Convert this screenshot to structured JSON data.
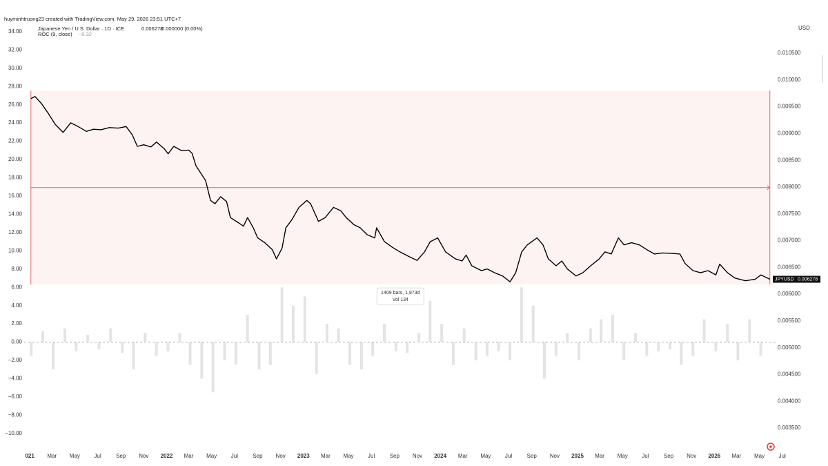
{
  "chart_data": {
    "type": "line",
    "credit": "huyminhtruong23 created with TradingView.com, May 29, 2026 23:51 UTC+7",
    "title": "Japanese Yen / U.S. Dollar · 1D · ICE",
    "last_value": 0.006278,
    "change": "0.000000 (0.00%)",
    "indicator": "ROC (9, close)",
    "indicator_value": "−0.32",
    "currency": "USD",
    "xlim": [
      "2020-12-17",
      "2026-06-15"
    ],
    "xticks": [
      {
        "value": "2021-01-01",
        "label": "021"
      },
      {
        "value": "2021-03-01",
        "label": "Mar"
      },
      {
        "value": "2021-05-01",
        "label": "May"
      },
      {
        "value": "2021-07-01",
        "label": "Jul"
      },
      {
        "value": "2021-09-01",
        "label": "Sep"
      },
      {
        "value": "2021-11-01",
        "label": "Nov"
      },
      {
        "value": "2022-01-01",
        "label": "2022"
      },
      {
        "value": "2022-03-01",
        "label": "Mar"
      },
      {
        "value": "2022-05-01",
        "label": "May"
      },
      {
        "value": "2022-07-01",
        "label": "Jul"
      },
      {
        "value": "2022-09-01",
        "label": "Sep"
      },
      {
        "value": "2022-11-01",
        "label": "Nov"
      },
      {
        "value": "2023-01-01",
        "label": "2023"
      },
      {
        "value": "2023-03-01",
        "label": "Mar"
      },
      {
        "value": "2023-05-01",
        "label": "May"
      },
      {
        "value": "2023-07-01",
        "label": "Jul"
      },
      {
        "value": "2023-09-01",
        "label": "Sep"
      },
      {
        "value": "2023-11-01",
        "label": "Nov"
      },
      {
        "value": "2024-01-01",
        "label": "2024"
      },
      {
        "value": "2024-03-01",
        "label": "Mar"
      },
      {
        "value": "2024-05-01",
        "label": "May"
      },
      {
        "value": "2024-07-01",
        "label": "Jul"
      },
      {
        "value": "2024-09-01",
        "label": "Sep"
      },
      {
        "value": "2024-11-01",
        "label": "Nov"
      },
      {
        "value": "2025-01-01",
        "label": "2025"
      },
      {
        "value": "2025-03-01",
        "label": "Mar"
      },
      {
        "value": "2025-05-01",
        "label": "May"
      },
      {
        "value": "2025-07-01",
        "label": "Jul"
      },
      {
        "value": "2025-09-01",
        "label": "Sep"
      },
      {
        "value": "2025-11-01",
        "label": "Nov"
      },
      {
        "value": "2026-01-01",
        "label": "2026"
      },
      {
        "value": "2026-03-01",
        "label": "Mar"
      },
      {
        "value": "2026-05-01",
        "label": "May"
      },
      {
        "value": "2026-07-01",
        "label": "Jul"
      }
    ],
    "ylim": [
      -11.3,
      35.2
    ],
    "yticks": [
      {
        "value": 34,
        "label": "34.00"
      },
      {
        "value": 32,
        "label": "32.00"
      },
      {
        "value": 30,
        "label": "30.00"
      },
      {
        "value": 28,
        "label": "28.00"
      },
      {
        "value": 26,
        "label": "26.00"
      },
      {
        "value": 24,
        "label": "24.00"
      },
      {
        "value": 22,
        "label": "22.00"
      },
      {
        "value": 20,
        "label": "20.00"
      },
      {
        "value": 18,
        "label": "18.00"
      },
      {
        "value": 16,
        "label": "16.00"
      },
      {
        "value": 14,
        "label": "14.00"
      },
      {
        "value": 12,
        "label": "12.00"
      },
      {
        "value": 10,
        "label": "10.00"
      },
      {
        "value": 8,
        "label": "8.00"
      },
      {
        "value": 6,
        "label": "6.00"
      },
      {
        "value": 4,
        "label": "4.00"
      },
      {
        "value": 2,
        "label": "2.00"
      },
      {
        "value": 0,
        "label": "0.00"
      },
      {
        "value": -2,
        "label": "−2.00"
      },
      {
        "value": -4,
        "label": "−4.00"
      },
      {
        "value": -6,
        "label": "−6.00"
      },
      {
        "value": -8,
        "label": "−8.00"
      },
      {
        "value": -10,
        "label": "−10.00"
      }
    ],
    "y2lim": [
      0.003178,
      0.011106
    ],
    "y2ticks": [
      {
        "value": 0.0105,
        "label": "0.010500"
      },
      {
        "value": 0.01,
        "label": "0.010000"
      },
      {
        "value": 0.0095,
        "label": "0.009500"
      },
      {
        "value": 0.009,
        "label": "0.009000"
      },
      {
        "value": 0.0085,
        "label": "0.008500"
      },
      {
        "value": 0.008,
        "label": "0.008000"
      },
      {
        "value": 0.0075,
        "label": "0.007500"
      },
      {
        "value": 0.007,
        "label": "0.007000"
      },
      {
        "value": 0.0065,
        "label": "0.006500"
      },
      {
        "value": 0.006,
        "label": "0.006000"
      },
      {
        "value": 0.0055,
        "label": "0.005500"
      },
      {
        "value": 0.005,
        "label": "0.005000"
      },
      {
        "value": 0.0045,
        "label": "0.004500"
      },
      {
        "value": 0.004,
        "label": "0.004000"
      },
      {
        "value": 0.0035,
        "label": "0.003500"
      }
    ],
    "zero_line": true,
    "measure": {
      "x": [
        "2021-01-04",
        "2026-05-29"
      ],
      "y": [
        0.0098,
        0.00618
      ],
      "label": "1409 bars, 1,973d",
      "volume": "Vol 134",
      "color": "#e06666"
    },
    "series": [
      {
        "name": "JPYUSD",
        "color": "#000000",
        "axis": "y2",
        "x": [
          "2021-01-04",
          "2021-01-15",
          "2021-02-01",
          "2021-02-20",
          "2021-03-10",
          "2021-03-31",
          "2021-04-20",
          "2021-05-10",
          "2021-06-01",
          "2021-06-20",
          "2021-07-10",
          "2021-08-01",
          "2021-08-25",
          "2021-09-15",
          "2021-10-01",
          "2021-10-15",
          "2021-11-01",
          "2021-11-20",
          "2021-12-05",
          "2021-12-25",
          "2022-01-05",
          "2022-01-20",
          "2022-02-10",
          "2022-03-01",
          "2022-03-10",
          "2022-03-20",
          "2022-04-01",
          "2022-04-15",
          "2022-04-28",
          "2022-05-10",
          "2022-05-25",
          "2022-06-10",
          "2022-06-20",
          "2022-07-10",
          "2022-07-25",
          "2022-08-05",
          "2022-08-20",
          "2022-09-01",
          "2022-09-20",
          "2022-10-10",
          "2022-10-21",
          "2022-11-05",
          "2022-11-15",
          "2022-12-01",
          "2022-12-20",
          "2023-01-10",
          "2023-01-20",
          "2023-02-10",
          "2023-02-28",
          "2023-03-22",
          "2023-04-10",
          "2023-04-25",
          "2023-05-15",
          "2023-06-01",
          "2023-06-20",
          "2023-07-10",
          "2023-07-15",
          "2023-08-05",
          "2023-08-25",
          "2023-09-15",
          "2023-10-10",
          "2023-10-31",
          "2023-11-20",
          "2023-12-05",
          "2023-12-25",
          "2024-01-15",
          "2024-02-10",
          "2024-02-28",
          "2024-03-10",
          "2024-03-25",
          "2024-04-20",
          "2024-05-05",
          "2024-05-25",
          "2024-06-15",
          "2024-07-05",
          "2024-07-20",
          "2024-08-05",
          "2024-08-20",
          "2024-09-15",
          "2024-10-01",
          "2024-10-15",
          "2024-11-05",
          "2024-11-20",
          "2024-12-05",
          "2024-12-28",
          "2025-01-15",
          "2025-02-05",
          "2025-02-28",
          "2025-03-15",
          "2025-04-01",
          "2025-04-20",
          "2025-05-05",
          "2025-05-25",
          "2025-06-15",
          "2025-07-05",
          "2025-07-25",
          "2025-08-15",
          "2025-09-10",
          "2025-10-01",
          "2025-10-15",
          "2025-11-05",
          "2025-11-25",
          "2025-12-15",
          "2026-01-05",
          "2026-01-15",
          "2026-02-05",
          "2026-02-25",
          "2026-03-25",
          "2026-04-20",
          "2026-05-05",
          "2026-05-29"
        ],
        "values": [
          0.00965,
          0.00969,
          0.00956,
          0.00937,
          0.00917,
          0.00902,
          0.0092,
          0.00913,
          0.00904,
          0.00908,
          0.00907,
          0.00911,
          0.0091,
          0.00913,
          0.00898,
          0.00876,
          0.00879,
          0.00875,
          0.00884,
          0.00872,
          0.00862,
          0.00876,
          0.00868,
          0.00869,
          0.00863,
          0.0084,
          0.00827,
          0.00812,
          0.00775,
          0.00769,
          0.00782,
          0.00773,
          0.00743,
          0.00734,
          0.00727,
          0.00743,
          0.00724,
          0.00705,
          0.00696,
          0.00683,
          0.00666,
          0.00686,
          0.00724,
          0.00739,
          0.00762,
          0.00775,
          0.00769,
          0.00736,
          0.00743,
          0.00762,
          0.00756,
          0.00743,
          0.0073,
          0.00724,
          0.00711,
          0.00705,
          0.00724,
          0.00698,
          0.00688,
          0.00679,
          0.0067,
          0.00663,
          0.00679,
          0.00698,
          0.00705,
          0.00679,
          0.00666,
          0.00662,
          0.00673,
          0.00653,
          0.00644,
          0.00647,
          0.0064,
          0.00634,
          0.00623,
          0.0064,
          0.00679,
          0.00692,
          0.00705,
          0.00692,
          0.00666,
          0.00653,
          0.00662,
          0.00647,
          0.00634,
          0.0064,
          0.00653,
          0.00666,
          0.00679,
          0.00675,
          0.00705,
          0.00692,
          0.00696,
          0.00692,
          0.00683,
          0.00675,
          0.00677,
          0.00676,
          0.00675,
          0.00657,
          0.00644,
          0.0064,
          0.00644,
          0.00636,
          0.00656,
          0.0064,
          0.0063,
          0.00625,
          0.00628,
          0.00636,
          0.006278
        ]
      },
      {
        "name": "ROC",
        "color": "#d8d8d8",
        "axis": "y",
        "x": [
          "2021-01",
          "2021-02",
          "2021-03",
          "2021-04",
          "2021-05",
          "2021-06",
          "2021-07",
          "2021-08",
          "2021-09",
          "2021-10",
          "2021-11",
          "2021-12",
          "2022-01",
          "2022-02",
          "2022-03",
          "2022-04",
          "2022-05",
          "2022-06",
          "2022-07",
          "2022-08",
          "2022-09",
          "2022-10",
          "2022-11",
          "2022-12",
          "2023-01",
          "2023-02",
          "2023-03",
          "2023-04",
          "2023-05",
          "2023-06",
          "2023-07",
          "2023-08",
          "2023-09",
          "2023-10",
          "2023-11",
          "2023-12",
          "2024-01",
          "2024-02",
          "2024-03",
          "2024-04",
          "2024-05",
          "2024-06",
          "2024-07",
          "2024-08",
          "2024-09",
          "2024-10",
          "2024-11",
          "2024-12",
          "2025-01",
          "2025-02",
          "2025-03",
          "2025-04",
          "2025-05",
          "2025-06",
          "2025-07",
          "2025-08",
          "2025-09",
          "2025-10",
          "2025-11",
          "2025-12",
          "2026-01",
          "2026-02",
          "2026-03",
          "2026-04",
          "2026-05"
        ],
        "values": [
          -1.5,
          1.2,
          -3,
          1.5,
          -1,
          0.8,
          -0.8,
          1.5,
          -1.2,
          -3,
          1,
          -1.5,
          -1,
          1,
          -2.5,
          -4,
          -5.5,
          -2,
          -2.5,
          3,
          -3,
          -2.5,
          6,
          4,
          5,
          -3.5,
          2,
          1.5,
          -2.5,
          -3,
          -1.5,
          2,
          -1,
          -1.2,
          1,
          4.5,
          2,
          -2.5,
          1.5,
          -2,
          -1.5,
          -1,
          -2,
          6,
          4,
          -4,
          -1.5,
          1,
          -2,
          1.5,
          2.5,
          3,
          -2,
          1,
          -1.5,
          -1,
          -0.8,
          -2.5,
          -1.5,
          2.5,
          -1,
          2,
          -2,
          2.5,
          -1.5
        ]
      }
    ]
  }
}
